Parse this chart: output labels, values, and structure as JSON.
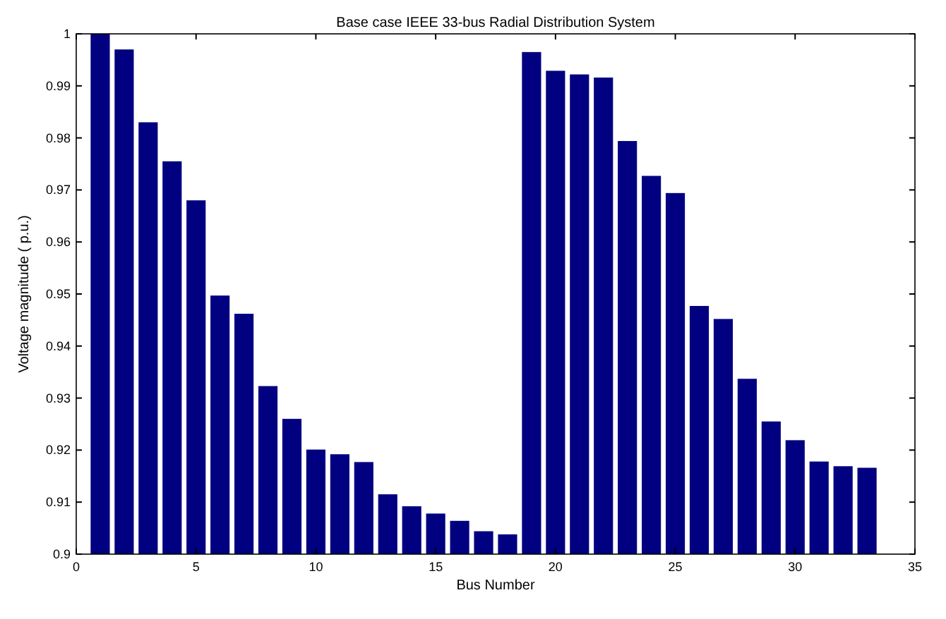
{
  "chart_data": {
    "type": "bar",
    "title": "Base case IEEE 33-bus Radial Distribution System",
    "xlabel": "Bus Number",
    "ylabel": "Voltage magnitude ( p.u.)",
    "x": [
      1,
      2,
      3,
      4,
      5,
      6,
      7,
      8,
      9,
      10,
      11,
      12,
      13,
      14,
      15,
      16,
      17,
      18,
      19,
      20,
      21,
      22,
      23,
      24,
      25,
      26,
      27,
      28,
      29,
      30,
      31,
      32,
      33
    ],
    "values": [
      1.0,
      0.997,
      0.983,
      0.9755,
      0.968,
      0.9497,
      0.9462,
      0.9323,
      0.926,
      0.9201,
      0.9192,
      0.9177,
      0.9115,
      0.9092,
      0.9078,
      0.9064,
      0.9044,
      0.9038,
      0.9965,
      0.9929,
      0.9922,
      0.9916,
      0.9794,
      0.9727,
      0.9694,
      0.9477,
      0.9452,
      0.9337,
      0.9255,
      0.9219,
      0.9178,
      0.9169,
      0.9166
    ],
    "color": "#000080",
    "xlim": [
      0,
      35
    ],
    "xticks": [
      0,
      5,
      10,
      15,
      20,
      25,
      30,
      35
    ],
    "ylim": [
      0.9,
      1
    ],
    "yticks": [
      0.9,
      0.91,
      0.92,
      0.93,
      0.94,
      0.95,
      0.96,
      0.97,
      0.98,
      0.99,
      1
    ],
    "grid": false
  }
}
